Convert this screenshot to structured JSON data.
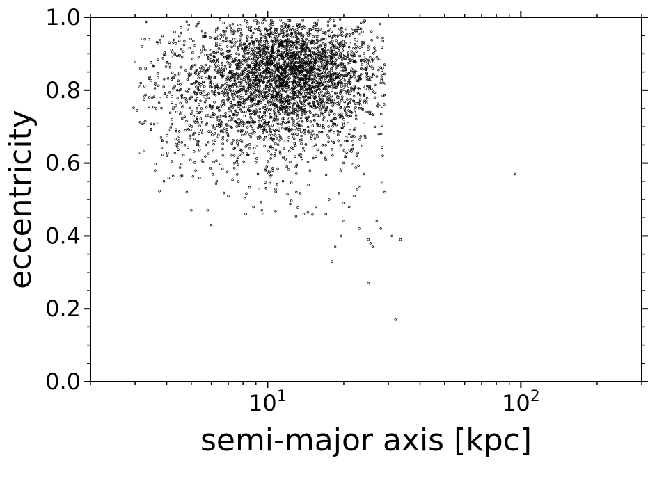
{
  "chart_data": {
    "type": "scatter",
    "title": "",
    "xlabel": "semi-major axis [kpc]",
    "ylabel": "eccentricity",
    "xscale": "log",
    "xlim": [
      2.0,
      300.0
    ],
    "ylim": [
      0.0,
      1.0
    ],
    "x_ticks": [
      {
        "value": 10,
        "base": "10",
        "exp": "1"
      },
      {
        "value": 100,
        "base": "10",
        "exp": "2"
      }
    ],
    "y_ticks": [
      {
        "value": 0.0,
        "label": "0.0"
      },
      {
        "value": 0.2,
        "label": "0.2"
      },
      {
        "value": 0.4,
        "label": "0.4"
      },
      {
        "value": 0.6,
        "label": "0.6"
      },
      {
        "value": 0.8,
        "label": "0.8"
      },
      {
        "value": 1.0,
        "label": "1.0"
      }
    ],
    "grid": false,
    "marker": "small hollow circle",
    "marker_color": "#000000",
    "points": [
      [
        3.0,
        0.88
      ],
      [
        3.2,
        0.92
      ],
      [
        3.4,
        0.94
      ],
      [
        3.3,
        0.86
      ],
      [
        3.6,
        0.82
      ],
      [
        3.5,
        0.78
      ],
      [
        3.7,
        0.71
      ],
      [
        3.8,
        0.67
      ],
      [
        3.6,
        0.58
      ],
      [
        3.9,
        0.55
      ],
      [
        4.0,
        0.62
      ],
      [
        4.2,
        0.72
      ],
      [
        4.4,
        0.8
      ],
      [
        4.6,
        0.89
      ],
      [
        4.3,
        0.96
      ],
      [
        4.8,
        0.52
      ],
      [
        5.0,
        0.47
      ],
      [
        5.2,
        0.58
      ],
      [
        5.3,
        0.66
      ],
      [
        5.5,
        0.74
      ],
      [
        5.8,
        0.47
      ],
      [
        6.0,
        0.43
      ],
      [
        6.3,
        0.55
      ],
      [
        7.0,
        0.51
      ],
      [
        7.4,
        0.6
      ],
      [
        8.2,
        0.46
      ],
      [
        8.8,
        0.48
      ],
      [
        9.5,
        0.47
      ],
      [
        10.5,
        0.58
      ],
      [
        11.5,
        0.55
      ],
      [
        13.0,
        0.52
      ],
      [
        14.5,
        0.54
      ],
      [
        15.5,
        0.48
      ],
      [
        17.0,
        0.46
      ],
      [
        17.5,
        0.5
      ],
      [
        18.0,
        0.33
      ],
      [
        18.5,
        0.37
      ],
      [
        19.5,
        0.4
      ],
      [
        20.0,
        0.44
      ],
      [
        21.0,
        0.48
      ],
      [
        22.0,
        0.51
      ],
      [
        23.0,
        0.42
      ],
      [
        25.0,
        0.39
      ],
      [
        25.5,
        0.38
      ],
      [
        26.0,
        0.37
      ],
      [
        27.0,
        0.44
      ],
      [
        28.0,
        0.42
      ],
      [
        29.0,
        0.52
      ],
      [
        28.5,
        0.62
      ],
      [
        27.5,
        0.68
      ],
      [
        31.0,
        0.4
      ],
      [
        33.5,
        0.39
      ],
      [
        25.0,
        0.27
      ],
      [
        32.0,
        0.17
      ],
      [
        95.0,
        0.57
      ],
      [
        24.0,
        0.57
      ],
      [
        22.5,
        0.62
      ],
      [
        26.5,
        0.78
      ],
      [
        28.0,
        0.82
      ],
      [
        27.0,
        0.89
      ],
      [
        26.0,
        0.86
      ],
      [
        29.0,
        0.87
      ],
      [
        23.5,
        0.75
      ],
      [
        21.0,
        0.68
      ],
      [
        20.0,
        0.72
      ]
    ],
    "clusters": [
      {
        "center_x": 12.5,
        "center_y": 0.86,
        "spread_log10": 0.17,
        "spread_y": 0.07,
        "count": 2000
      },
      {
        "center_x": 9.0,
        "center_y": 0.8,
        "spread_log10": 0.22,
        "spread_y": 0.1,
        "count": 1100
      },
      {
        "center_x": 11.0,
        "center_y": 0.7,
        "spread_log10": 0.24,
        "spread_y": 0.1,
        "count": 450
      }
    ]
  }
}
